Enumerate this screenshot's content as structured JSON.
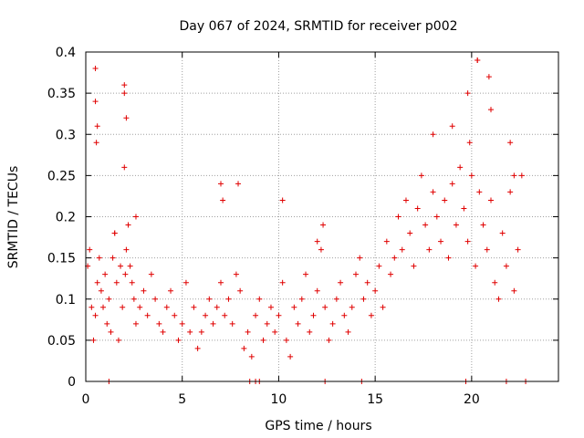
{
  "chart_data": {
    "type": "scatter",
    "title": "Day 067 of 2024, SRMTID for receiver p002",
    "xlabel": "GPS time / hours",
    "ylabel": "SRMTID / TECUs",
    "xlim": [
      0,
      24.5
    ],
    "ylim": [
      0,
      0.4
    ],
    "xticks": [
      0,
      5,
      10,
      15,
      20
    ],
    "xtick_labels": [
      "0",
      "5",
      "10",
      "15",
      "20"
    ],
    "yticks": [
      0,
      0.05,
      0.1,
      0.15,
      0.2,
      0.25,
      0.3,
      0.35,
      0.4
    ],
    "ytick_labels": [
      "0",
      "0.05",
      "0.1",
      "0.15",
      "0.2",
      "0.25",
      "0.3",
      "0.35",
      "0.4"
    ],
    "grid": true,
    "marker": "+",
    "series": [
      {
        "name": "SRMTID",
        "color": "#e00000",
        "x": [
          0.1,
          0.2,
          0.3,
          0.4,
          0.5,
          0.55,
          0.6,
          0.7,
          0.8,
          0.9,
          1.0,
          1.1,
          1.2,
          1.3,
          1.4,
          1.5,
          1.6,
          1.7,
          1.8,
          1.9,
          2.0,
          2.05,
          2.1,
          2.2,
          2.3,
          2.4,
          2.5,
          2.6,
          2.8,
          3.0,
          3.2,
          3.4,
          3.6,
          3.8,
          4.0,
          4.2,
          4.4,
          4.6,
          4.8,
          5.0,
          5.2,
          5.4,
          5.6,
          5.8,
          6.0,
          6.2,
          6.4,
          6.6,
          6.8,
          7.0,
          7.1,
          7.2,
          7.4,
          7.6,
          7.8,
          8.0,
          8.2,
          8.4,
          8.6,
          8.8,
          9.0,
          9.2,
          9.4,
          9.6,
          9.8,
          10.0,
          10.2,
          10.4,
          10.6,
          10.8,
          11.0,
          11.2,
          11.4,
          11.6,
          11.8,
          12.0,
          12.2,
          12.4,
          12.6,
          12.8,
          13.0,
          13.2,
          13.4,
          13.6,
          13.8,
          14.0,
          14.2,
          14.4,
          14.6,
          14.8,
          15.0,
          15.2,
          15.4,
          15.6,
          15.8,
          16.0,
          16.2,
          16.4,
          16.6,
          16.8,
          17.0,
          17.2,
          17.4,
          17.6,
          17.8,
          18.0,
          18.2,
          18.4,
          18.6,
          18.8,
          19.0,
          19.2,
          19.4,
          19.6,
          19.8,
          20.0,
          20.2,
          20.3,
          20.4,
          20.6,
          20.8,
          21.0,
          21.2,
          21.4,
          21.6,
          21.8,
          22.0,
          22.2,
          22.4,
          22.6,
          0.5,
          0.5,
          0.6,
          1.5,
          2.0,
          2.0,
          2.1,
          2.6,
          7.0,
          7.9,
          10.2,
          12.0,
          12.3,
          18.0,
          19.0,
          19.8,
          19.9,
          20.3,
          20.9,
          21.0,
          22.0,
          22.2,
          1.2,
          8.5,
          8.8,
          9.0,
          12.4,
          14.3,
          19.7,
          21.8,
          22.8
        ],
        "y": [
          0.14,
          0.16,
          0.09,
          0.05,
          0.08,
          0.29,
          0.12,
          0.15,
          0.11,
          0.09,
          0.13,
          0.07,
          0.1,
          0.06,
          0.15,
          0.18,
          0.12,
          0.05,
          0.14,
          0.09,
          0.26,
          0.13,
          0.16,
          0.19,
          0.14,
          0.12,
          0.1,
          0.07,
          0.09,
          0.11,
          0.08,
          0.13,
          0.1,
          0.07,
          0.06,
          0.09,
          0.11,
          0.08,
          0.05,
          0.07,
          0.12,
          0.06,
          0.09,
          0.04,
          0.06,
          0.08,
          0.1,
          0.07,
          0.09,
          0.12,
          0.22,
          0.08,
          0.1,
          0.07,
          0.13,
          0.11,
          0.04,
          0.06,
          0.03,
          0.08,
          0.1,
          0.05,
          0.07,
          0.09,
          0.06,
          0.08,
          0.12,
          0.05,
          0.03,
          0.09,
          0.07,
          0.1,
          0.13,
          0.06,
          0.08,
          0.11,
          0.16,
          0.09,
          0.05,
          0.07,
          0.1,
          0.12,
          0.08,
          0.06,
          0.09,
          0.13,
          0.15,
          0.1,
          0.12,
          0.08,
          0.11,
          0.14,
          0.09,
          0.17,
          0.13,
          0.15,
          0.2,
          0.16,
          0.22,
          0.18,
          0.14,
          0.21,
          0.25,
          0.19,
          0.16,
          0.23,
          0.2,
          0.17,
          0.22,
          0.15,
          0.24,
          0.19,
          0.26,
          0.21,
          0.17,
          0.25,
          0.14,
          0.39,
          0.23,
          0.19,
          0.16,
          0.22,
          0.12,
          0.1,
          0.18,
          0.14,
          0.23,
          0.11,
          0.16,
          0.25,
          0.38,
          0.34,
          0.31,
          0.18,
          0.36,
          0.35,
          0.32,
          0.2,
          0.24,
          0.24,
          0.22,
          0.17,
          0.19,
          0.3,
          0.31,
          0.35,
          0.29,
          0.39,
          0.37,
          0.33,
          0.29,
          0.25,
          0.0,
          0.0,
          0.0,
          0.0,
          0.0,
          0.0,
          0.0,
          0.0,
          0.0
        ]
      }
    ]
  }
}
